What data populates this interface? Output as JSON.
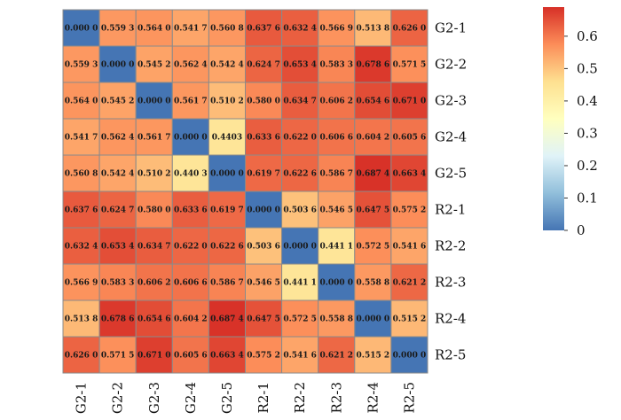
{
  "chart_data": {
    "type": "heatmap",
    "title": "",
    "xlabel": "",
    "ylabel": "",
    "labels": [
      "G2-1",
      "G2-2",
      "G2-3",
      "G2-4",
      "G2-5",
      "R2-1",
      "R2-2",
      "R2-3",
      "R2-4",
      "R2-5"
    ],
    "matrix": [
      [
        0.0,
        0.5593,
        0.564,
        0.5417,
        0.5608,
        0.6376,
        0.6324,
        0.5669,
        0.5138,
        0.626
      ],
      [
        0.5593,
        0.0,
        0.5452,
        0.5624,
        0.5424,
        0.6247,
        0.6534,
        0.5833,
        0.6786,
        0.5715
      ],
      [
        0.564,
        0.5452,
        0.0,
        0.5617,
        0.5102,
        0.58,
        0.6347,
        0.6062,
        0.6546,
        0.671
      ],
      [
        0.5417,
        0.5624,
        0.5617,
        0.0,
        0.4403,
        0.6336,
        0.622,
        0.6066,
        0.6042,
        0.6056
      ],
      [
        0.5608,
        0.5424,
        0.5102,
        0.4403,
        0.0,
        0.6197,
        0.6226,
        0.5867,
        0.6874,
        0.6634
      ],
      [
        0.6376,
        0.6247,
        0.58,
        0.6336,
        0.6197,
        0.0,
        0.5036,
        0.5465,
        0.6475,
        0.5752
      ],
      [
        0.6324,
        0.6534,
        0.6347,
        0.622,
        0.6226,
        0.5036,
        0.0,
        0.4411,
        0.5725,
        0.5416
      ],
      [
        0.5669,
        0.5833,
        0.6062,
        0.6066,
        0.5867,
        0.5465,
        0.4411,
        0.0,
        0.5588,
        0.6212
      ],
      [
        0.5138,
        0.6786,
        0.6546,
        0.6042,
        0.6874,
        0.6475,
        0.5725,
        0.5588,
        0.0,
        0.5152
      ],
      [
        0.626,
        0.5715,
        0.671,
        0.6056,
        0.6634,
        0.5752,
        0.5416,
        0.6212,
        0.5152,
        0.0
      ]
    ],
    "cell_text": [
      [
        "0.000 0",
        "0.559 3",
        "0.564 0",
        "0.541 7",
        "0.560 8",
        "0.637 6",
        "0.632 4",
        "0.566 9",
        "0.513 8",
        "0.626 0"
      ],
      [
        "0.559 3",
        "0.000 0",
        "0.545 2",
        "0.562 4",
        "0.542 4",
        "0.624 7",
        "0.653 4",
        "0.583 3",
        "0.678 6",
        "0.571 5"
      ],
      [
        "0.564 0",
        "0.545 2",
        "0.000 0",
        "0.561 7",
        "0.510 2",
        "0.580 0",
        "0.634 7",
        "0.606 2",
        "0.654 6",
        "0.671 0"
      ],
      [
        "0.541 7",
        "0.562 4",
        "0.561 7",
        "0.000 0",
        "0.4403",
        "0.633 6",
        "0.622 0",
        "0.606 6",
        "0.604 2",
        "0.605 6"
      ],
      [
        "0.560 8",
        "0.542 4",
        "0.510 2",
        "0.440 3",
        "0.000 0",
        "0.619 7",
        "0.622 6",
        "0.586 7",
        "0.687 4",
        "0.663 4"
      ],
      [
        "0.637 6",
        "0.624 7",
        "0.580 0",
        "0.633 6",
        "0.619 7",
        "0.000 0",
        "0.503 6",
        "0.546 5",
        "0.647 5",
        "0.575 2"
      ],
      [
        "0.632 4",
        "0.653 4",
        "0.634 7",
        "0.622 0",
        "0.622 6",
        "0.503 6",
        "0.000 0",
        "0.441 1",
        "0.572 5",
        "0.541 6"
      ],
      [
        "0.566 9",
        "0.583 3",
        "0.606 2",
        "0.606 6",
        "0.586 7",
        "0.546 5",
        "0.441 1",
        "0.000 0",
        "0.558 8",
        "0.621 2"
      ],
      [
        "0.513 8",
        "0.678 6",
        "0.654 6",
        "0.604 2",
        "0.687 4",
        "0.647 5",
        "0.572 5",
        "0.558 8",
        "0.000 0",
        "0.515 2"
      ],
      [
        "0.626 0",
        "0.571 5",
        "0.671 0",
        "0.605 6",
        "0.663 4",
        "0.575 2",
        "0.541 6",
        "0.621 2",
        "0.515 2",
        "0.000 0"
      ]
    ],
    "colorbar": {
      "ticks": [
        0,
        0.1,
        0.2,
        0.3,
        0.4,
        0.5,
        0.6
      ],
      "tick_labels": [
        "0",
        "0.1",
        "0.2",
        "0.3",
        "0.4",
        "0.5",
        "0.6"
      ],
      "range": [
        0,
        0.69
      ],
      "colormap": [
        "#4575b4",
        "#91bfdb",
        "#e0f3f8",
        "#ffffbf",
        "#fee090",
        "#fc8d59",
        "#d73027"
      ]
    },
    "grid": true,
    "row_labels_position": "right",
    "col_labels_position": "bottom",
    "colorbar_position": "right"
  }
}
